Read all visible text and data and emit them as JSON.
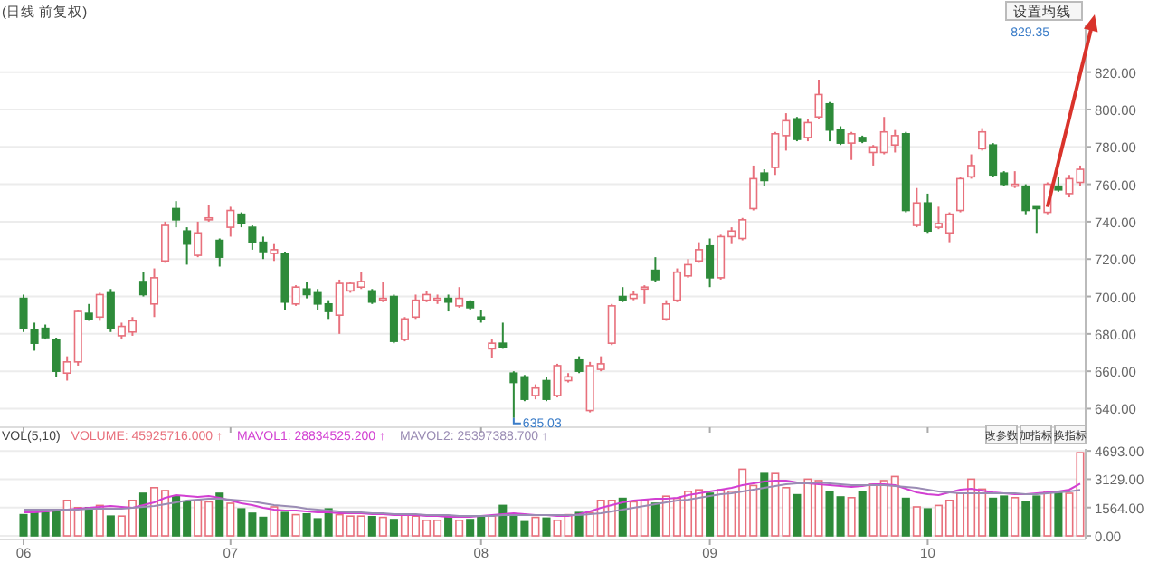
{
  "chart_data": [
    {
      "type": "candlestick",
      "title": "(日线 前复权)",
      "tick_labels": "y",
      "grid": "y",
      "categories": [
        "06",
        null,
        null,
        null,
        null,
        null,
        null,
        null,
        null,
        null,
        null,
        null,
        null,
        null,
        null,
        null,
        null,
        null,
        null,
        "07",
        null,
        null,
        null,
        null,
        null,
        null,
        null,
        null,
        null,
        null,
        null,
        null,
        null,
        null,
        null,
        null,
        null,
        null,
        null,
        null,
        null,
        null,
        "08",
        null,
        null,
        null,
        null,
        null,
        null,
        null,
        null,
        null,
        null,
        null,
        null,
        null,
        null,
        null,
        null,
        null,
        null,
        null,
        null,
        "09",
        null,
        null,
        null,
        null,
        null,
        null,
        null,
        null,
        null,
        null,
        null,
        null,
        null,
        null,
        null,
        null,
        null,
        null,
        null,
        "10",
        null,
        null,
        null,
        null,
        null,
        null,
        null,
        null,
        null,
        null,
        null,
        null,
        null,
        null
      ],
      "ohlc": [
        [
          699,
          701,
          681,
          683
        ],
        [
          682,
          686,
          671,
          675
        ],
        [
          683,
          685,
          677,
          678
        ],
        [
          677,
          678,
          657,
          660
        ],
        [
          659,
          668,
          655,
          665
        ],
        [
          665,
          693,
          663,
          692
        ],
        [
          691,
          696,
          687,
          688
        ],
        [
          689,
          702,
          687,
          701
        ],
        [
          702,
          704,
          681,
          683
        ],
        [
          679,
          686,
          677,
          684
        ],
        [
          681,
          689,
          679,
          687
        ],
        [
          708,
          713,
          700,
          701
        ],
        [
          696,
          715,
          689,
          710
        ],
        [
          719,
          740,
          718,
          738
        ],
        [
          747,
          751,
          737,
          741
        ],
        [
          735,
          737,
          717,
          728
        ],
        [
          722,
          740,
          721,
          734
        ],
        [
          741,
          749,
          740,
          742
        ],
        [
          730,
          731,
          716,
          721
        ],
        [
          737,
          748,
          732,
          746
        ],
        [
          744,
          745,
          737,
          739
        ],
        [
          737,
          738,
          725,
          729
        ],
        [
          729,
          732,
          720,
          724
        ],
        [
          723,
          728,
          719,
          725
        ],
        [
          723,
          724,
          693,
          697
        ],
        [
          696,
          706,
          695,
          705
        ],
        [
          704,
          708,
          699,
          701
        ],
        [
          702,
          704,
          693,
          696
        ],
        [
          696,
          698,
          688,
          692
        ],
        [
          690,
          709,
          680,
          707
        ],
        [
          703,
          708,
          702,
          707
        ],
        [
          705,
          713,
          704,
          708
        ],
        [
          703,
          704,
          696,
          697
        ],
        [
          698,
          708,
          697,
          699
        ],
        [
          700,
          701,
          675,
          676
        ],
        [
          677,
          689,
          676,
          688
        ],
        [
          689,
          701,
          688,
          698
        ],
        [
          698,
          703,
          697,
          701
        ],
        [
          698,
          701,
          696,
          699
        ],
        [
          699,
          701,
          692,
          697
        ],
        [
          695,
          705,
          694,
          699
        ],
        [
          697,
          698,
          693,
          694
        ],
        [
          689,
          693,
          686,
          688
        ],
        [
          672,
          677,
          667,
          675
        ],
        [
          675,
          686,
          672,
          673
        ],
        [
          659,
          660,
          635.03,
          654
        ],
        [
          657,
          658,
          644,
          645
        ],
        [
          647,
          653,
          645,
          651
        ],
        [
          655,
          657,
          644,
          645
        ],
        [
          647,
          664,
          646,
          663
        ],
        [
          655,
          659,
          654,
          657
        ],
        [
          666,
          668,
          659,
          660
        ],
        [
          639,
          665,
          638,
          663
        ],
        [
          661,
          668,
          660,
          664
        ],
        [
          675,
          696,
          674,
          695
        ],
        [
          700,
          705,
          697,
          698
        ],
        [
          699,
          703,
          698,
          701
        ],
        [
          704,
          706,
          696,
          705
        ],
        [
          714,
          721,
          708,
          709
        ],
        [
          688,
          698,
          687,
          696
        ],
        [
          698,
          715,
          697,
          713
        ],
        [
          711,
          720,
          710,
          717
        ],
        [
          719,
          729,
          718,
          725
        ],
        [
          727,
          731,
          705,
          710
        ],
        [
          710,
          733,
          709,
          732
        ],
        [
          732,
          737,
          728,
          735
        ],
        [
          731,
          742,
          730,
          741
        ],
        [
          747,
          770,
          746,
          763
        ],
        [
          766,
          768,
          759,
          762
        ],
        [
          769,
          788,
          765,
          787
        ],
        [
          786,
          798,
          778,
          794
        ],
        [
          795,
          796,
          783,
          784
        ],
        [
          785,
          795,
          783,
          793
        ],
        [
          796,
          816,
          795,
          808
        ],
        [
          803,
          804,
          783,
          789
        ],
        [
          789,
          791,
          781,
          782
        ],
        [
          782,
          788,
          773,
          787
        ],
        [
          785,
          786,
          782,
          783
        ],
        [
          777,
          781,
          770,
          780
        ],
        [
          777,
          796,
          776,
          788
        ],
        [
          781,
          789,
          777,
          786
        ],
        [
          787,
          788,
          745,
          746
        ],
        [
          738,
          758,
          737,
          750
        ],
        [
          750,
          755,
          734,
          735
        ],
        [
          737,
          748,
          736,
          739
        ],
        [
          734,
          745,
          729,
          744
        ],
        [
          746,
          764,
          745,
          763
        ],
        [
          764,
          776,
          763,
          770
        ],
        [
          779,
          790,
          778,
          788
        ],
        [
          781,
          782,
          764,
          765
        ],
        [
          766,
          767,
          759,
          760
        ],
        [
          759,
          767,
          758,
          760
        ],
        [
          759,
          760,
          744,
          746
        ],
        [
          748,
          748,
          734,
          747
        ],
        [
          745,
          761,
          744,
          760
        ],
        [
          759,
          764,
          756,
          757
        ],
        [
          755,
          765,
          753,
          763
        ],
        [
          761,
          770,
          759,
          768
        ]
      ],
      "ylim": [
        632,
        845
      ],
      "yticks": [
        {
          "value": 640,
          "label": "640.00"
        },
        {
          "value": 660,
          "label": "660.00"
        },
        {
          "value": 680,
          "label": "680.00"
        },
        {
          "value": 700,
          "label": "700.00"
        },
        {
          "value": 720,
          "label": "720.00"
        },
        {
          "value": 740,
          "label": "740.00"
        },
        {
          "value": 760,
          "label": "760.00"
        },
        {
          "value": 780,
          "label": "780.00"
        },
        {
          "value": 800,
          "label": "800.00"
        },
        {
          "value": 820,
          "label": "820.00"
        }
      ],
      "annotations": [
        "设置均线",
        "829.35",
        "635.03"
      ]
    },
    {
      "type": "bar",
      "title": "VOL(5,10)",
      "stacked": true,
      "grid": "y",
      "legend": "top left",
      "categories": [
        "06",
        null,
        null,
        null,
        null,
        null,
        null,
        null,
        null,
        null,
        null,
        null,
        null,
        null,
        null,
        null,
        null,
        null,
        null,
        "07",
        null,
        null,
        null,
        null,
        null,
        null,
        null,
        null,
        null,
        null,
        null,
        null,
        null,
        null,
        null,
        null,
        null,
        null,
        null,
        null,
        null,
        null,
        "08",
        null,
        null,
        null,
        null,
        null,
        null,
        null,
        null,
        null,
        null,
        null,
        null,
        null,
        null,
        null,
        null,
        null,
        null,
        null,
        null,
        "09",
        null,
        null,
        null,
        null,
        null,
        null,
        null,
        null,
        null,
        null,
        null,
        null,
        null,
        null,
        null,
        null,
        null,
        null,
        null,
        "10",
        null,
        null,
        null,
        null,
        null,
        null,
        null,
        null,
        null,
        null,
        null,
        null,
        null,
        null
      ],
      "series": [
        {
          "name": "VOLUME: 45925716.000 ↑",
          "color": "#e8707c",
          "values": [
            null,
            null,
            null,
            null,
            1960,
            1560,
            null,
            1680,
            null,
            1090,
            1960,
            null,
            2660,
            2500,
            null,
            null,
            1960,
            1880,
            null,
            1800,
            null,
            null,
            null,
            1600,
            null,
            1170,
            null,
            null,
            null,
            1170,
            1090,
            1090,
            null,
            1020,
            null,
            1170,
            1090,
            860,
            860,
            null,
            860,
            null,
            null,
            1090,
            null,
            null,
            null,
            1020,
            null,
            860,
            1170,
            null,
            1290,
            1960,
            1960,
            null,
            1880,
            1960,
            null,
            2190,
            2070,
            2460,
            2540,
            null,
            2540,
            2460,
            3680,
            2780,
            null,
            3440,
            2660,
            null,
            3130,
            3050,
            null,
            null,
            2110,
            null,
            2850,
            3050,
            3280,
            null,
            1600,
            null,
            1680,
            1960,
            2350,
            3130,
            2580,
            null,
            null,
            2110,
            null,
            null,
            2460,
            null,
            2350,
            4593
          ]
        },
        {
          "color": "#2e8b3a",
          "values": [
            1170,
            1370,
            1290,
            1370,
            null,
            null,
            1560,
            null,
            1090,
            null,
            null,
            2350,
            null,
            null,
            2190,
            1880,
            null,
            null,
            2350,
            null,
            1490,
            1250,
            1020,
            null,
            1290,
            null,
            1210,
            940,
            1490,
            null,
            null,
            null,
            1060,
            null,
            900,
            null,
            null,
            null,
            null,
            1020,
            null,
            900,
            1090,
            null,
            1680,
            1170,
            780,
            null,
            980,
            null,
            null,
            1290,
            null,
            null,
            null,
            2070,
            null,
            null,
            1800,
            null,
            null,
            null,
            null,
            2350,
            null,
            null,
            null,
            null,
            3440,
            null,
            null,
            2270,
            null,
            null,
            2460,
            2150,
            null,
            2460,
            null,
            null,
            null,
            2070,
            null,
            1490,
            null,
            null,
            null,
            null,
            null,
            2070,
            2190,
            null,
            1880,
            2190,
            null,
            2460,
            null,
            null
          ]
        },
        {
          "type": "line",
          "name": "MAVOL1: 28834525.200 ↑",
          "color": "#d23fd2",
          "values": [
            1300,
            1300,
            1350,
            1400,
            1450,
            1500,
            1550,
            1600,
            1650,
            1600,
            1550,
            1700,
            1850,
            2100,
            2250,
            2200,
            2150,
            2200,
            2100,
            1950,
            1800,
            1700,
            1550,
            1450,
            1400,
            1400,
            1350,
            1300,
            1300,
            1250,
            1250,
            1250,
            1200,
            1200,
            1150,
            1150,
            1150,
            1100,
            1100,
            1050,
            1050,
            1050,
            1100,
            1150,
            1200,
            1250,
            1200,
            1150,
            1150,
            1100,
            1100,
            1200,
            1350,
            1550,
            1700,
            1850,
            1950,
            2000,
            2050,
            2050,
            2100,
            2250,
            2350,
            2450,
            2550,
            2650,
            2800,
            2900,
            3000,
            3050,
            3050,
            2950,
            2900,
            2850,
            2800,
            2750,
            2700,
            2750,
            2850,
            2850,
            2800,
            2600,
            2400,
            2300,
            2250,
            2400,
            2550,
            2600,
            2500,
            2400,
            2350,
            2300,
            2300,
            2350,
            2400,
            2450,
            2550,
            2883
          ]
        },
        {
          "type": "line",
          "name": "MAVOL2: 25397388.700 ↑",
          "color": "#9a8cb4",
          "values": [
            1450,
            1450,
            1450,
            1450,
            1450,
            1450,
            1500,
            1500,
            1500,
            1500,
            1550,
            1600,
            1650,
            1750,
            1850,
            1950,
            2000,
            2050,
            2050,
            2000,
            1950,
            1900,
            1800,
            1700,
            1650,
            1600,
            1500,
            1450,
            1400,
            1350,
            1300,
            1300,
            1250,
            1250,
            1200,
            1200,
            1200,
            1150,
            1150,
            1150,
            1100,
            1100,
            1100,
            1100,
            1150,
            1150,
            1150,
            1150,
            1150,
            1150,
            1150,
            1150,
            1200,
            1250,
            1350,
            1450,
            1550,
            1650,
            1750,
            1850,
            1950,
            2000,
            2100,
            2200,
            2300,
            2350,
            2450,
            2550,
            2650,
            2750,
            2850,
            2900,
            2900,
            2950,
            2900,
            2850,
            2800,
            2800,
            2800,
            2800,
            2750,
            2700,
            2650,
            2550,
            2450,
            2400,
            2350,
            2350,
            2350,
            2350,
            2350,
            2350,
            2300,
            2300,
            2350,
            2400,
            2450,
            2540
          ]
        }
      ],
      "ylim": [
        0,
        4800
      ],
      "yticks": [
        {
          "value": 0,
          "label": "0.00"
        },
        {
          "value": 1564,
          "label": "1564.00"
        },
        {
          "value": 3129,
          "label": "3129.00"
        },
        {
          "value": 4693,
          "label": "4693.00"
        }
      ],
      "annotations": [
        "改参数",
        "加指标",
        "换指标"
      ]
    }
  ]
}
